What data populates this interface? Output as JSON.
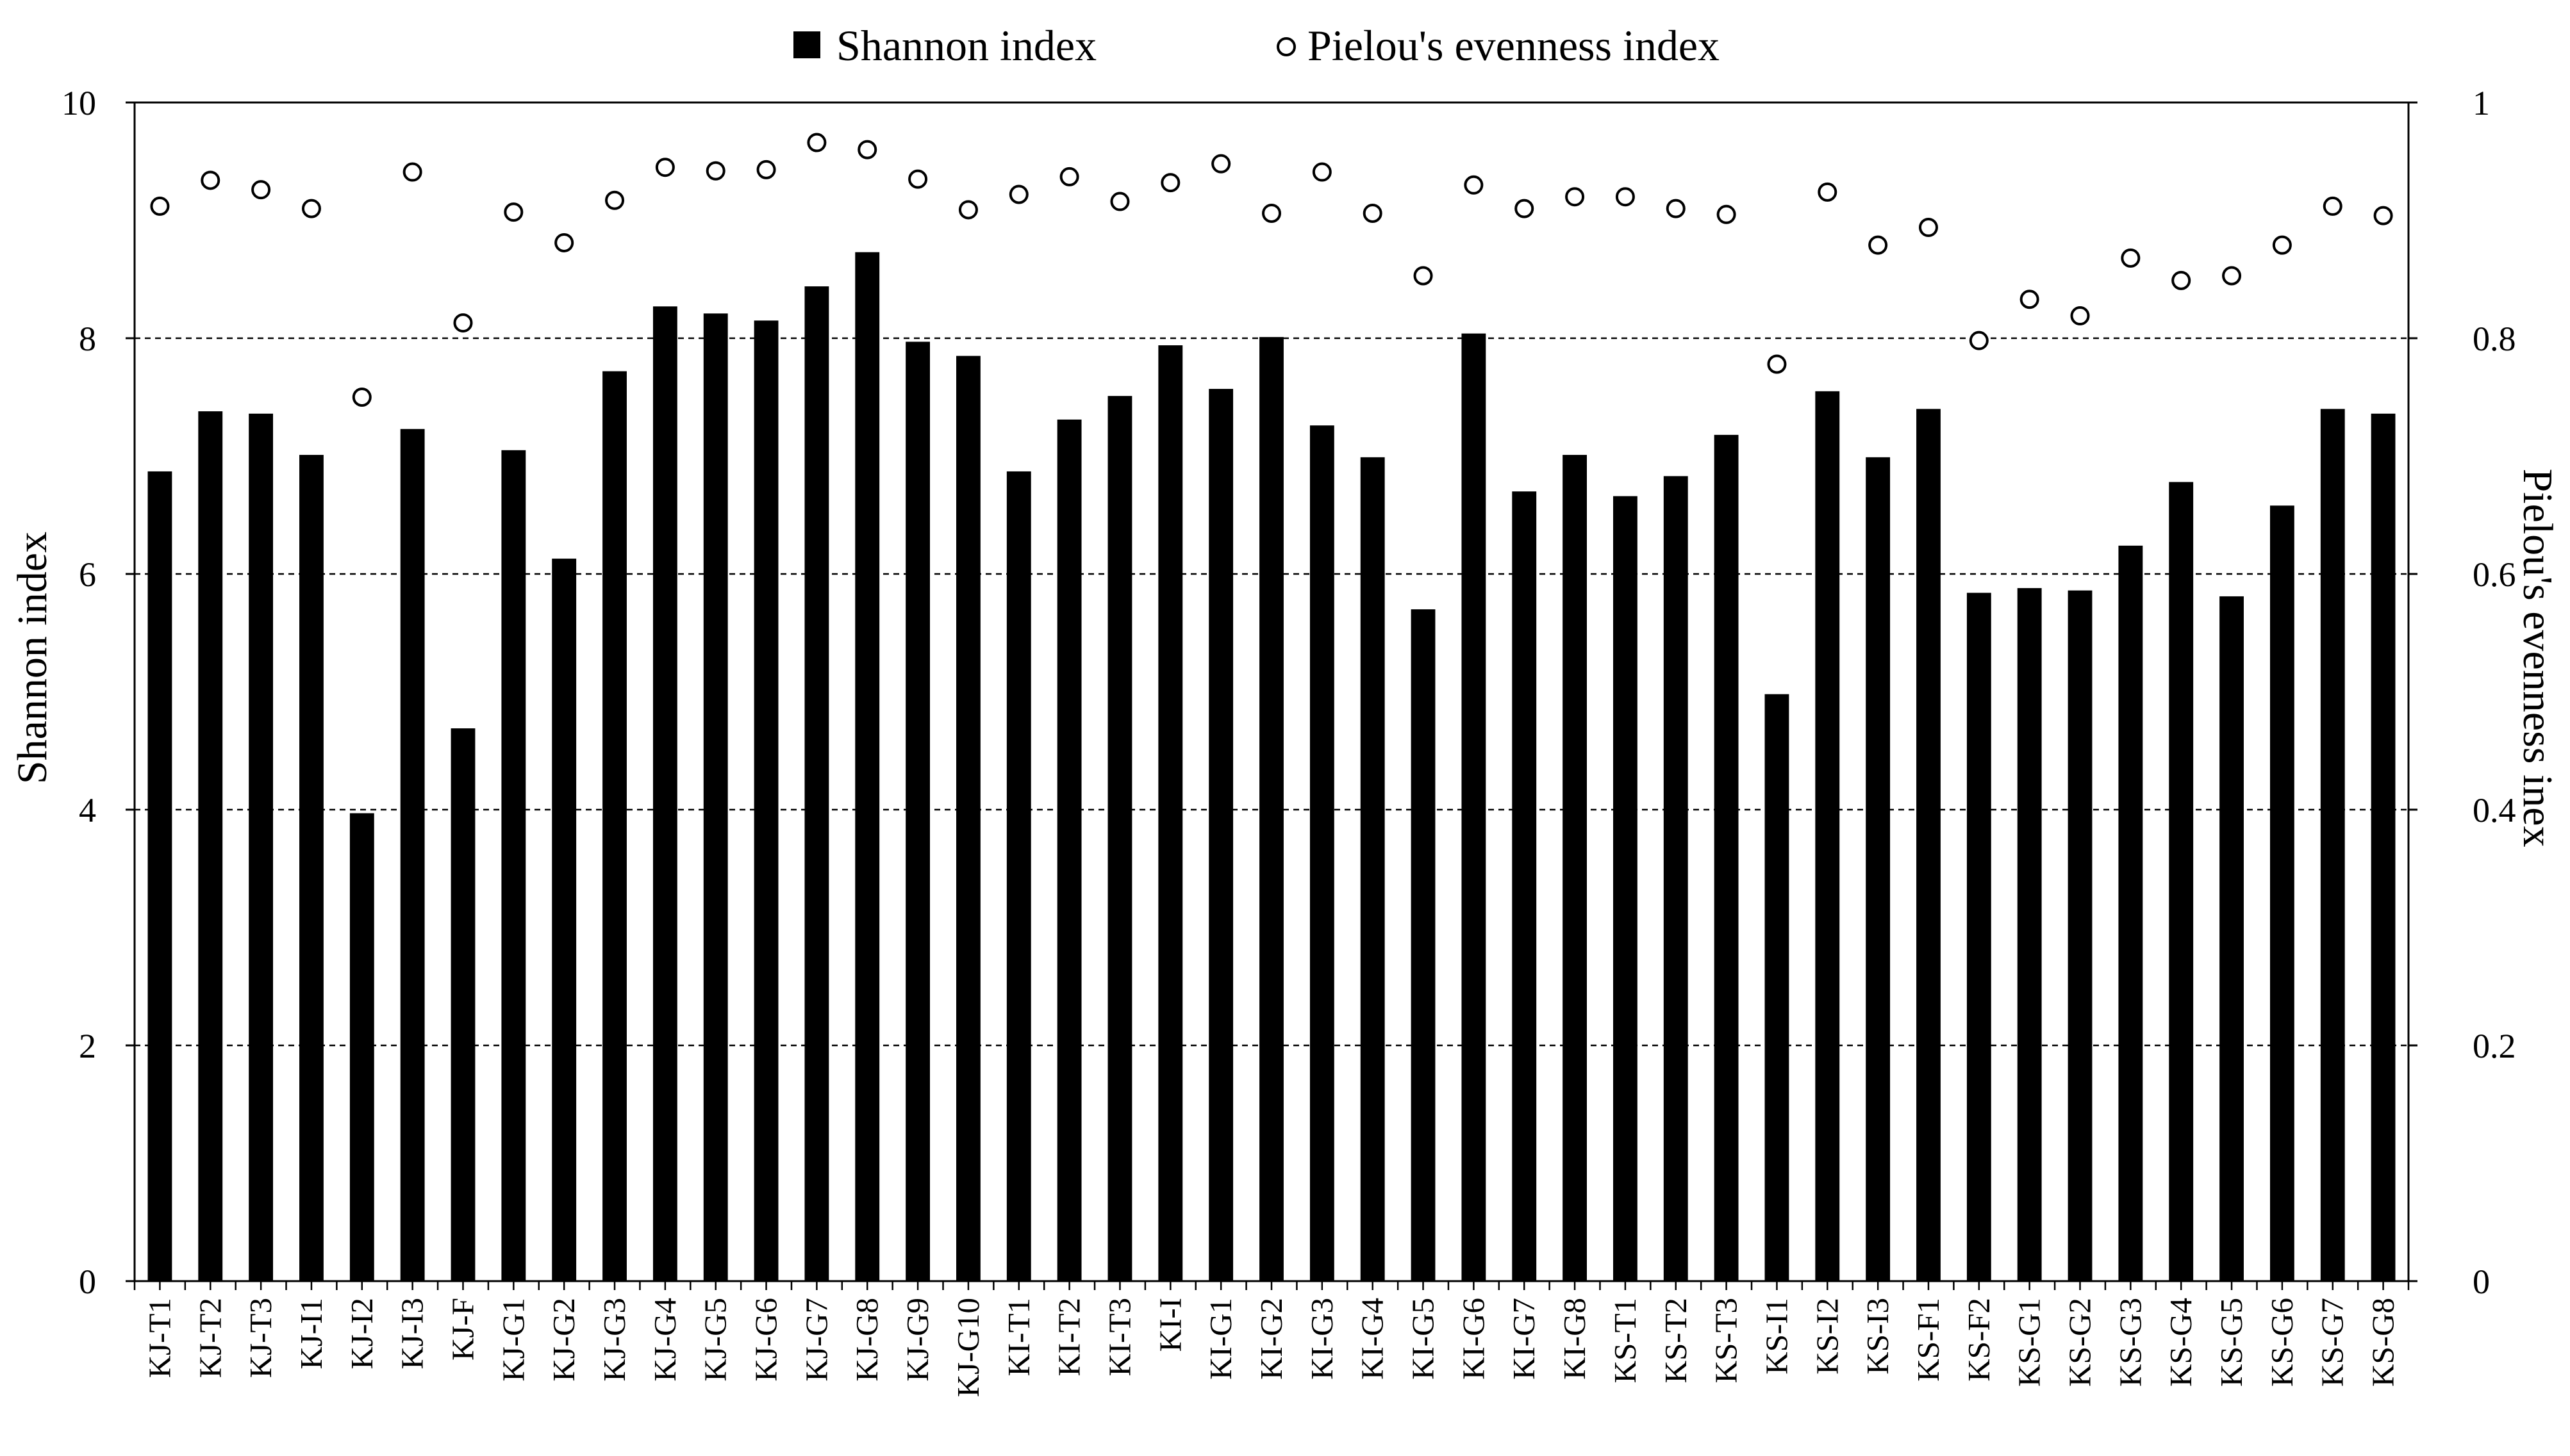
{
  "chart_data": {
    "type": "bar",
    "categories": [
      "KJ-T1",
      "KJ-T2",
      "KJ-T3",
      "KJ-I1",
      "KJ-I2",
      "KJ-I3",
      "KJ-F",
      "KJ-G1",
      "KJ-G2",
      "KJ-G3",
      "KJ-G4",
      "KJ-G5",
      "KJ-G6",
      "KJ-G7",
      "KJ-G8",
      "KJ-G9",
      "KJ-G10",
      "KI-T1",
      "KI-T2",
      "KI-T3",
      "KI-I",
      "KI-G1",
      "KI-G2",
      "KI-G3",
      "KI-G4",
      "KI-G5",
      "KI-G6",
      "KI-G7",
      "KI-G8",
      "KS-T1",
      "KS-T2",
      "KS-T3",
      "KS-I1",
      "KS-I2",
      "KS-I3",
      "KS-F1",
      "KS-F2",
      "KS-G1",
      "KS-G2",
      "KS-G3",
      "KS-G4",
      "KS-G5",
      "KS-G6",
      "KS-G7",
      "KS-G8"
    ],
    "series": [
      {
        "name": "Shannon index",
        "axis": "left",
        "type": "bar",
        "color": "#000000",
        "values": [
          6.87,
          7.38,
          7.36,
          7.01,
          3.97,
          7.23,
          4.69,
          7.05,
          6.13,
          7.72,
          8.27,
          8.21,
          8.15,
          8.44,
          8.73,
          7.97,
          7.85,
          6.87,
          7.31,
          7.51,
          7.94,
          7.57,
          8.01,
          7.26,
          6.99,
          5.7,
          8.04,
          6.7,
          7.01,
          6.66,
          6.83,
          7.18,
          4.98,
          7.55,
          6.99,
          7.4,
          5.84,
          5.88,
          5.86,
          6.24,
          6.78,
          5.81,
          6.58,
          7.4,
          7.36
        ]
      },
      {
        "name": "Pielou's evenness index",
        "axis": "right",
        "type": "scatter",
        "marker": "open-circle",
        "values": [
          0.912,
          0.934,
          0.926,
          0.91,
          0.75,
          0.941,
          0.813,
          0.907,
          0.881,
          0.917,
          0.945,
          0.942,
          0.943,
          0.966,
          0.96,
          0.935,
          0.909,
          0.922,
          0.937,
          0.916,
          0.932,
          0.948,
          0.906,
          0.941,
          0.906,
          0.853,
          0.93,
          0.91,
          0.92,
          0.92,
          0.91,
          0.905,
          0.778,
          0.924,
          0.879,
          0.894,
          0.798,
          0.833,
          0.819,
          0.868,
          0.849,
          0.853,
          0.879,
          0.912,
          0.904
        ]
      }
    ],
    "ylabel": "Shannon index",
    "ylim": [
      0,
      10
    ],
    "yticks": [
      0,
      2,
      4,
      6,
      8,
      10
    ],
    "y2label": "Pielou's evenness inex",
    "y2lim": [
      0,
      1
    ],
    "y2ticks": [
      "0",
      "0.2",
      "0.4",
      "0.6",
      "0.8",
      "1"
    ],
    "grid": "horizontal dashed",
    "legend": "top"
  }
}
